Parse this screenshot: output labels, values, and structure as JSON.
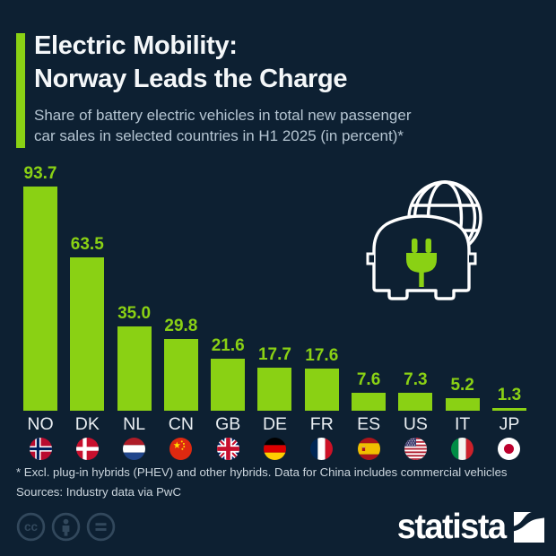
{
  "colors": {
    "background": "#0d2032",
    "accent_green": "#8ad114",
    "title_text": "#f4f7f9",
    "subtitle_text": "#b5c5d2",
    "country_label_text": "#e9eef2",
    "footnote_text": "#ccd6de",
    "cc_icon_color": "#32485c",
    "logo_text_color": "#ffffff"
  },
  "header": {
    "title_line1": "Electric Mobility:",
    "title_line2": "Norway Leads the Charge",
    "subtitle_line1": "Share of battery electric vehicles in total new passenger",
    "subtitle_line2": "car sales in selected countries in H1 2025 (in percent)*"
  },
  "chart_data": {
    "type": "bar",
    "title": "Share of battery electric vehicles in total new passenger car sales in selected countries in H1 2025 (in percent)*",
    "categories": [
      "NO",
      "DK",
      "NL",
      "CN",
      "GB",
      "DE",
      "FR",
      "ES",
      "US",
      "IT",
      "JP"
    ],
    "countries": [
      "norway",
      "denmark",
      "netherlands",
      "china",
      "united-kingdom",
      "germany",
      "france",
      "spain",
      "united-states",
      "italy",
      "japan"
    ],
    "values": [
      93.7,
      63.5,
      35.0,
      29.8,
      21.6,
      17.7,
      17.6,
      7.6,
      7.3,
      5.2,
      1.3
    ],
    "value_labels": [
      "93.7",
      "63.5",
      "35.0",
      "29.8",
      "21.6",
      "17.7",
      "17.6",
      "7.6",
      "7.3",
      "5.2",
      "1.3"
    ],
    "ylim": [
      0,
      100
    ],
    "grid": false,
    "legend": false,
    "bar_color": "#8ad114",
    "value_label_color": "#8ad114"
  },
  "decoration": {
    "icon": "ev-car-globe-icon"
  },
  "footer": {
    "footnote": "* Excl. plug-in hybrids (PHEV) and other hybrids. Data for China includes commercial vehicles",
    "sources": "Sources: Industry data via PwC"
  },
  "branding": {
    "logo_text": "statista",
    "license_icons": [
      "cc-icon",
      "attribution-icon",
      "equals-icon"
    ]
  }
}
